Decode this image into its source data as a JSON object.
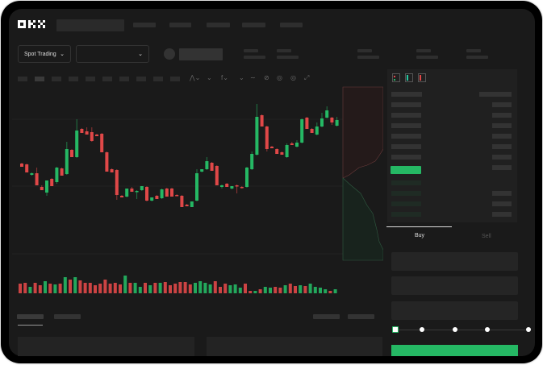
{
  "brand": {
    "logo": "OKX"
  },
  "toolbar": {
    "market_button": "Spot Trading",
    "pair_selector": ""
  },
  "trade": {
    "buy_tab": "Buy",
    "sell_tab": "Sell",
    "leverage_steps": [
      0,
      25,
      50,
      75,
      100
    ],
    "selected_step": 0
  },
  "colors": {
    "up": "#25b864",
    "down": "#e04848",
    "background": "#1a1a1a",
    "panel": "#202020"
  },
  "icons": [
    "chevron-down-icon",
    "indicator-icon",
    "pencil-icon",
    "camera-icon",
    "settings-icon",
    "fullscreen-icon",
    "orderbook-both-icon",
    "orderbook-bids-icon",
    "orderbook-asks-icon"
  ],
  "chart_data": {
    "type": "candlestick",
    "title": "",
    "xlabel": "",
    "ylabel": "",
    "grid": true,
    "candles": [
      {
        "o": 97,
        "h": 98,
        "l": 93,
        "c": 93
      },
      {
        "o": 96,
        "h": 97,
        "l": 86,
        "c": 86
      },
      {
        "o": 83,
        "h": 86,
        "l": 82,
        "c": 85
      },
      {
        "o": 85,
        "h": 92,
        "l": 70,
        "c": 70
      },
      {
        "o": 68,
        "h": 70,
        "l": 64,
        "c": 64
      },
      {
        "o": 61,
        "h": 76,
        "l": 57,
        "c": 76
      },
      {
        "o": 78,
        "h": 79,
        "l": 69,
        "c": 69
      },
      {
        "o": 74,
        "h": 93,
        "l": 72,
        "c": 92
      },
      {
        "o": 91,
        "h": 92,
        "l": 82,
        "c": 82
      },
      {
        "o": 84,
        "h": 124,
        "l": 83,
        "c": 115
      },
      {
        "o": 114,
        "h": 115,
        "l": 105,
        "c": 105
      },
      {
        "o": 105,
        "h": 152,
        "l": 104,
        "c": 138
      },
      {
        "o": 140,
        "h": 141,
        "l": 135,
        "c": 135
      },
      {
        "o": 137,
        "h": 142,
        "l": 133,
        "c": 133
      },
      {
        "o": 136,
        "h": 142,
        "l": 124,
        "c": 125
      },
      {
        "o": 133,
        "h": 134,
        "l": 131,
        "c": 131
      },
      {
        "o": 134,
        "h": 135,
        "l": 111,
        "c": 111
      },
      {
        "o": 111,
        "h": 112,
        "l": 87,
        "c": 87
      },
      {
        "o": 90,
        "h": 91,
        "l": 86,
        "c": 86
      },
      {
        "o": 89,
        "h": 90,
        "l": 52,
        "c": 58
      },
      {
        "o": 57,
        "h": 58,
        "l": 55,
        "c": 55
      },
      {
        "o": 56,
        "h": 66,
        "l": 55,
        "c": 66
      },
      {
        "o": 66,
        "h": 68,
        "l": 62,
        "c": 62
      },
      {
        "o": 62,
        "h": 64,
        "l": 53,
        "c": 63
      },
      {
        "o": 64,
        "h": 69,
        "l": 63,
        "c": 69
      },
      {
        "o": 68,
        "h": 69,
        "l": 50,
        "c": 51
      },
      {
        "o": 51,
        "h": 55,
        "l": 50,
        "c": 55
      },
      {
        "o": 57,
        "h": 58,
        "l": 53,
        "c": 53
      },
      {
        "o": 54,
        "h": 66,
        "l": 53,
        "c": 65
      },
      {
        "o": 66,
        "h": 67,
        "l": 56,
        "c": 56
      },
      {
        "o": 66,
        "h": 67,
        "l": 56,
        "c": 56
      },
      {
        "o": 58,
        "h": 59,
        "l": 57,
        "c": 57
      },
      {
        "o": 57,
        "h": 58,
        "l": 43,
        "c": 43
      },
      {
        "o": 46,
        "h": 47,
        "l": 44,
        "c": 44
      },
      {
        "o": 43,
        "h": 50,
        "l": 43,
        "c": 50
      },
      {
        "o": 51,
        "h": 90,
        "l": 50,
        "c": 85
      },
      {
        "o": 87,
        "h": 90,
        "l": 86,
        "c": 90
      },
      {
        "o": 90,
        "h": 105,
        "l": 89,
        "c": 100
      },
      {
        "o": 98,
        "h": 99,
        "l": 88,
        "c": 88
      },
      {
        "o": 94,
        "h": 95,
        "l": 70,
        "c": 70
      },
      {
        "o": 68,
        "h": 71,
        "l": 66,
        "c": 70
      },
      {
        "o": 72,
        "h": 73,
        "l": 68,
        "c": 68
      },
      {
        "o": 66,
        "h": 69,
        "l": 65,
        "c": 69
      },
      {
        "o": 70,
        "h": 71,
        "l": 60,
        "c": 69
      },
      {
        "o": 68,
        "h": 69,
        "l": 66,
        "c": 67
      },
      {
        "o": 68,
        "h": 93,
        "l": 67,
        "c": 92
      },
      {
        "o": 90,
        "h": 112,
        "l": 89,
        "c": 109
      },
      {
        "o": 108,
        "h": 171,
        "l": 107,
        "c": 155
      },
      {
        "o": 157,
        "h": 158,
        "l": 143,
        "c": 143
      },
      {
        "o": 143,
        "h": 144,
        "l": 112,
        "c": 115
      },
      {
        "o": 118,
        "h": 119,
        "l": 116,
        "c": 116
      },
      {
        "o": 115,
        "h": 116,
        "l": 109,
        "c": 109
      },
      {
        "o": 111,
        "h": 112,
        "l": 108,
        "c": 108
      },
      {
        "o": 105,
        "h": 122,
        "l": 104,
        "c": 120
      },
      {
        "o": 122,
        "h": 124,
        "l": 120,
        "c": 120
      },
      {
        "o": 118,
        "h": 126,
        "l": 117,
        "c": 123
      },
      {
        "o": 123,
        "h": 153,
        "l": 122,
        "c": 152
      },
      {
        "o": 154,
        "h": 155,
        "l": 140,
        "c": 140
      },
      {
        "o": 140,
        "h": 141,
        "l": 135,
        "c": 135
      },
      {
        "o": 133,
        "h": 148,
        "l": 132,
        "c": 143
      },
      {
        "o": 143,
        "h": 160,
        "l": 142,
        "c": 153
      },
      {
        "o": 154,
        "h": 168,
        "l": 153,
        "c": 163
      },
      {
        "o": 154,
        "h": 155,
        "l": 145,
        "c": 148
      },
      {
        "o": 144,
        "h": 155,
        "l": 143,
        "c": 151
      }
    ],
    "volume": [
      {
        "v": 12,
        "up": false
      },
      {
        "v": 13,
        "up": false
      },
      {
        "v": 8,
        "up": true
      },
      {
        "v": 13,
        "up": false
      },
      {
        "v": 10,
        "up": false
      },
      {
        "v": 15,
        "up": true
      },
      {
        "v": 12,
        "up": false
      },
      {
        "v": 11,
        "up": true
      },
      {
        "v": 12,
        "up": false
      },
      {
        "v": 20,
        "up": true
      },
      {
        "v": 17,
        "up": false
      },
      {
        "v": 20,
        "up": true
      },
      {
        "v": 16,
        "up": false
      },
      {
        "v": 13,
        "up": false
      },
      {
        "v": 13,
        "up": false
      },
      {
        "v": 10,
        "up": false
      },
      {
        "v": 12,
        "up": false
      },
      {
        "v": 17,
        "up": false
      },
      {
        "v": 12,
        "up": false
      },
      {
        "v": 13,
        "up": false
      },
      {
        "v": 11,
        "up": false
      },
      {
        "v": 22,
        "up": true
      },
      {
        "v": 13,
        "up": false
      },
      {
        "v": 13,
        "up": true
      },
      {
        "v": 8,
        "up": true
      },
      {
        "v": 13,
        "up": false
      },
      {
        "v": 10,
        "up": true
      },
      {
        "v": 13,
        "up": false
      },
      {
        "v": 13,
        "up": true
      },
      {
        "v": 14,
        "up": false
      },
      {
        "v": 10,
        "up": false
      },
      {
        "v": 12,
        "up": false
      },
      {
        "v": 14,
        "up": false
      },
      {
        "v": 14,
        "up": false
      },
      {
        "v": 11,
        "up": false
      },
      {
        "v": 13,
        "up": true
      },
      {
        "v": 15,
        "up": true
      },
      {
        "v": 13,
        "up": true
      },
      {
        "v": 11,
        "up": true
      },
      {
        "v": 15,
        "up": false
      },
      {
        "v": 8,
        "up": false
      },
      {
        "v": 12,
        "up": false
      },
      {
        "v": 10,
        "up": true
      },
      {
        "v": 11,
        "up": true
      },
      {
        "v": 7,
        "up": true
      },
      {
        "v": 12,
        "up": false
      },
      {
        "v": 3,
        "up": false
      },
      {
        "v": 3,
        "up": true
      },
      {
        "v": 5,
        "up": false
      },
      {
        "v": 8,
        "up": true
      },
      {
        "v": 7,
        "up": true
      },
      {
        "v": 8,
        "up": false
      },
      {
        "v": 7,
        "up": false
      },
      {
        "v": 10,
        "up": true
      },
      {
        "v": 12,
        "up": false
      },
      {
        "v": 9,
        "up": false
      },
      {
        "v": 10,
        "up": true
      },
      {
        "v": 9,
        "up": false
      },
      {
        "v": 12,
        "up": true
      },
      {
        "v": 8,
        "up": true
      },
      {
        "v": 7,
        "up": true
      },
      {
        "v": 5,
        "up": true
      },
      {
        "v": 3,
        "up": false
      },
      {
        "v": 5,
        "up": true
      }
    ]
  }
}
